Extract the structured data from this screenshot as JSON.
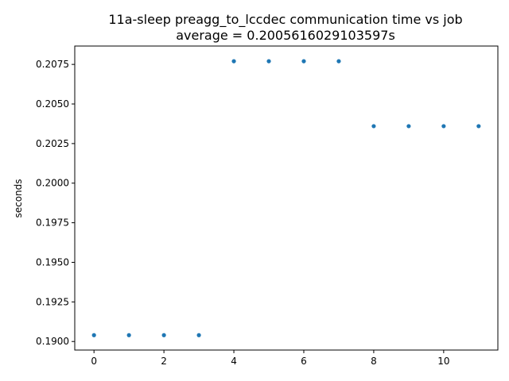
{
  "chart_data": {
    "type": "scatter",
    "title": "11a-sleep preagg_to_lccdec communication time vs job",
    "subtitle": "average = 0.2005616029103597s",
    "xlabel": "",
    "ylabel": "seconds",
    "xlim": [
      -0.55,
      11.55
    ],
    "ylim": [
      0.18946,
      0.20866
    ],
    "x_ticks": [
      0,
      2,
      4,
      6,
      8,
      10
    ],
    "x_tick_labels": [
      "0",
      "2",
      "4",
      "6",
      "8",
      "10"
    ],
    "y_ticks": [
      0.19,
      0.1925,
      0.195,
      0.1975,
      0.2,
      0.2025,
      0.205,
      0.2075
    ],
    "y_tick_labels": [
      "0.1900",
      "0.1925",
      "0.1950",
      "0.1975",
      "0.2000",
      "0.2025",
      "0.2050",
      "0.2075"
    ],
    "grid": false,
    "marker_color": "#1f77b4",
    "series": [
      {
        "x": [
          0,
          1,
          2,
          3,
          4,
          5,
          6,
          7,
          8,
          9,
          10,
          11
        ],
        "y": [
          0.1904,
          0.1904,
          0.1904,
          0.1904,
          0.2077,
          0.2077,
          0.2077,
          0.2077,
          0.2036,
          0.2036,
          0.2036,
          0.2036
        ]
      }
    ]
  }
}
